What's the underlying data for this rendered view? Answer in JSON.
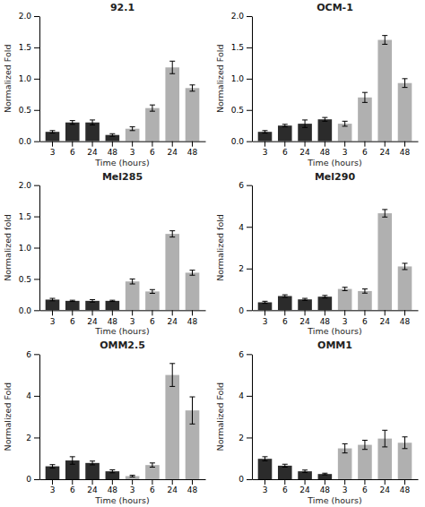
{
  "chart_data": [
    {
      "type": "bar",
      "title": "92.1",
      "xlabel": "Time (hours)",
      "ylabel": "Normalized Fold",
      "categories": [
        "3",
        "6",
        "24",
        "48",
        "3",
        "6",
        "24",
        "48"
      ],
      "series": [
        {
          "color": "#2b2b2b",
          "values": [
            0.15,
            0.3,
            0.3,
            0.1,
            null,
            null,
            null,
            null
          ],
          "errors": [
            0.02,
            0.03,
            0.04,
            0.02,
            null,
            null,
            null,
            null
          ]
        },
        {
          "color": "#b0b0b0",
          "values": [
            null,
            null,
            null,
            null,
            0.2,
            0.53,
            1.18,
            0.85
          ],
          "errors": [
            null,
            null,
            null,
            null,
            0.03,
            0.05,
            0.1,
            0.05
          ]
        }
      ],
      "ylim": [
        0,
        2.0
      ],
      "yticks": [
        {
          "value": 0.0,
          "label": "0.0"
        },
        0.5,
        {
          "value": 1.0,
          "label": "1.0"
        },
        1.5,
        {
          "value": 2.0,
          "label": "2.0"
        }
      ]
    },
    {
      "type": "bar",
      "title": "OCM-1",
      "xlabel": "Time (hours)",
      "ylabel": "Normalized Fold",
      "categories": [
        "3",
        "6",
        "24",
        "48",
        "3",
        "6",
        "24",
        "48"
      ],
      "series": [
        {
          "color": "#2b2b2b",
          "values": [
            0.15,
            0.25,
            0.28,
            0.35,
            null,
            null,
            null,
            null
          ],
          "errors": [
            0.02,
            0.02,
            0.06,
            0.03,
            null,
            null,
            null,
            null
          ]
        },
        {
          "color": "#b0b0b0",
          "values": [
            null,
            null,
            null,
            null,
            0.28,
            0.7,
            1.62,
            0.93
          ],
          "errors": [
            null,
            null,
            null,
            null,
            0.04,
            0.08,
            0.07,
            0.07
          ]
        }
      ],
      "ylim": [
        0,
        2.0
      ],
      "yticks": [
        {
          "value": 0.0,
          "label": "0.0"
        },
        0.5,
        {
          "value": 1.0,
          "label": "1.0"
        },
        1.5,
        {
          "value": 2.0,
          "label": "2.0"
        }
      ]
    },
    {
      "type": "bar",
      "title": "Mel285",
      "xlabel": "Time (hours)",
      "ylabel": "Normalized fold",
      "categories": [
        "3",
        "6",
        "24",
        "48",
        "3",
        "6",
        "24",
        "48"
      ],
      "series": [
        {
          "color": "#2b2b2b",
          "values": [
            0.17,
            0.15,
            0.15,
            0.15,
            null,
            null,
            null,
            null
          ],
          "errors": [
            0.02,
            0.01,
            0.02,
            0.01,
            null,
            null,
            null,
            null
          ]
        },
        {
          "color": "#b0b0b0",
          "values": [
            null,
            null,
            null,
            null,
            0.46,
            0.3,
            1.22,
            0.6
          ],
          "errors": [
            null,
            null,
            null,
            null,
            0.04,
            0.03,
            0.05,
            0.04
          ]
        }
      ],
      "ylim": [
        0,
        2.0
      ],
      "yticks": [
        {
          "value": 0.0,
          "label": "0.0"
        },
        0.5,
        {
          "value": 1.0,
          "label": "1.0"
        },
        1.5,
        {
          "value": 2.0,
          "label": "2.0"
        }
      ]
    },
    {
      "type": "bar",
      "title": "Mel290",
      "xlabel": "Time (hours)",
      "ylabel": "Normalized fold",
      "categories": [
        "3",
        "6",
        "24",
        "48",
        "3",
        "6",
        "24",
        "48"
      ],
      "series": [
        {
          "color": "#2b2b2b",
          "values": [
            0.38,
            0.68,
            0.52,
            0.65,
            null,
            null,
            null,
            null
          ],
          "errors": [
            0.05,
            0.06,
            0.05,
            0.06,
            null,
            null,
            null,
            null
          ]
        },
        {
          "color": "#b0b0b0",
          "values": [
            null,
            null,
            null,
            null,
            1.02,
            0.92,
            4.65,
            2.1
          ],
          "errors": [
            null,
            null,
            null,
            null,
            0.08,
            0.1,
            0.18,
            0.15
          ]
        }
      ],
      "ylim": [
        0,
        6
      ],
      "yticks": [
        0,
        2,
        4,
        6
      ]
    },
    {
      "type": "bar",
      "title": "OMM2.5",
      "xlabel": "Time (hours)",
      "ylabel": "Normalized Fold",
      "categories": [
        "3",
        "6",
        "24",
        "48",
        "3",
        "6",
        "24",
        "48"
      ],
      "series": [
        {
          "color": "#2b2b2b",
          "values": [
            0.62,
            0.9,
            0.78,
            0.38,
            null,
            null,
            null,
            null
          ],
          "errors": [
            0.08,
            0.18,
            0.09,
            0.07,
            null,
            null,
            null,
            null
          ]
        },
        {
          "color": "#b0b0b0",
          "values": [
            null,
            null,
            null,
            null,
            0.15,
            0.68,
            5.0,
            3.3
          ],
          "errors": [
            null,
            null,
            null,
            null,
            0.04,
            0.1,
            0.55,
            0.65
          ]
        }
      ],
      "ylim": [
        0,
        6
      ],
      "yticks": [
        0,
        2,
        4,
        6
      ]
    },
    {
      "type": "bar",
      "title": "OMM1",
      "xlabel": "Time (hours)",
      "ylabel": "Normalized Fold",
      "categories": [
        "3",
        "6",
        "24",
        "48",
        "3",
        "6",
        "24",
        "48"
      ],
      "series": [
        {
          "color": "#2b2b2b",
          "values": [
            0.98,
            0.65,
            0.38,
            0.25,
            null,
            null,
            null,
            null
          ],
          "errors": [
            0.1,
            0.07,
            0.06,
            0.04,
            null,
            null,
            null,
            null
          ]
        },
        {
          "color": "#b0b0b0",
          "values": [
            null,
            null,
            null,
            null,
            1.48,
            1.65,
            1.95,
            1.75
          ],
          "errors": [
            null,
            null,
            null,
            null,
            0.22,
            0.22,
            0.4,
            0.28
          ]
        }
      ],
      "ylim": [
        0,
        6
      ],
      "yticks": [
        0,
        2,
        4,
        6
      ]
    }
  ]
}
